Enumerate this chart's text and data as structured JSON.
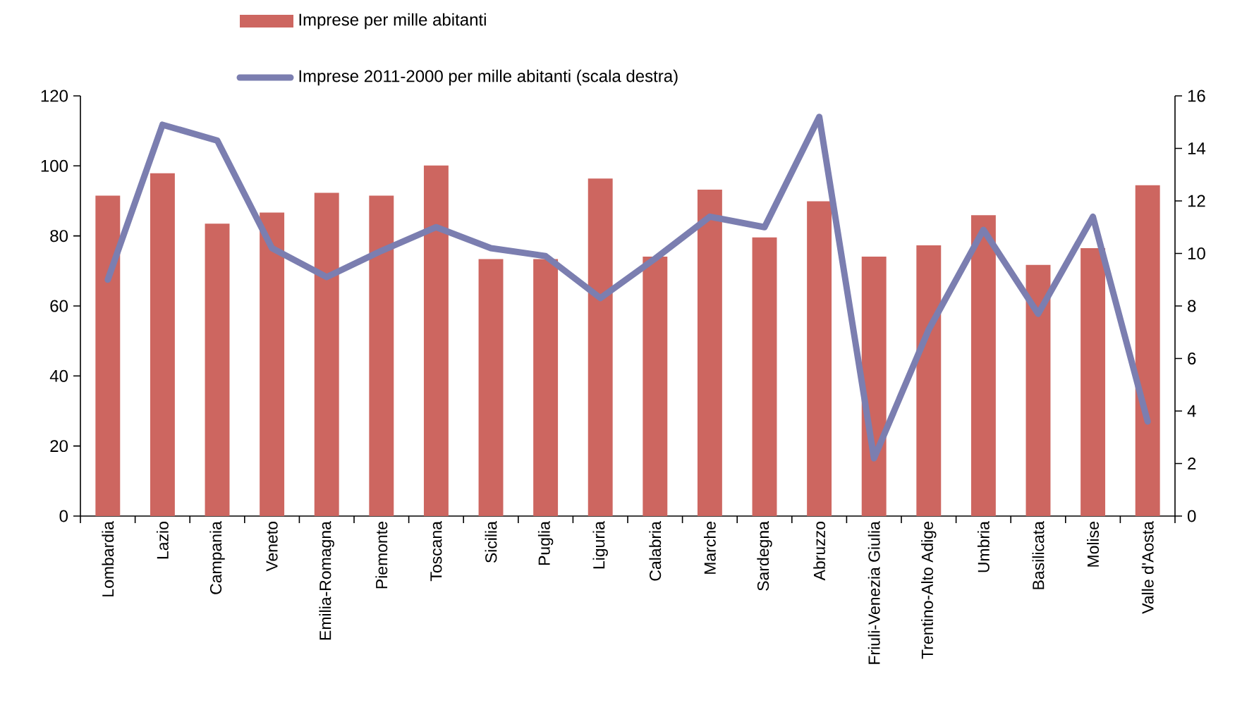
{
  "chart_data": {
    "type": "bar",
    "categories": [
      "Lombardia",
      "Lazio",
      "Campania",
      "Veneto",
      "Emilia-Romagna",
      "Piemonte",
      "Toscana",
      "Sicilia",
      "Puglia",
      "Liguria",
      "Calabria",
      "Marche",
      "Sardegna",
      "Abruzzo",
      "Friuli-Venezia Giulia",
      "Trentino-Alto Adige",
      "Umbria",
      "Basilicata",
      "Molise",
      "Valle d'Aosta"
    ],
    "series": [
      {
        "name": "Imprese per mille abitanti",
        "color": "#cd6660",
        "values": [
          91.5,
          97.9,
          83.5,
          86.7,
          92.3,
          91.5,
          100.1,
          73.4,
          73.4,
          96.4,
          74.1,
          93.2,
          79.6,
          89.9,
          74.1,
          77.3,
          85.9,
          71.7,
          76.5,
          94.5
        ]
      },
      {
        "name": "Imprese 2011-2000 per mille abitanti (scala destra)",
        "type": "line",
        "axis": "y2",
        "color": "#7b7eb0",
        "values": [
          9.0,
          14.9,
          14.3,
          10.2,
          9.1,
          10.1,
          11.0,
          10.2,
          9.9,
          8.3,
          9.8,
          11.4,
          11.0,
          15.2,
          2.2,
          7.1,
          10.9,
          7.7,
          11.4,
          3.6
        ]
      }
    ],
    "ylim": [
      0,
      120
    ],
    "yticks": [
      0,
      20,
      40,
      60,
      80,
      100,
      120
    ],
    "y2lim": [
      0,
      16
    ],
    "y2ticks": [
      0,
      2,
      4,
      6,
      8,
      10,
      12,
      14,
      16
    ],
    "legend": "top"
  }
}
